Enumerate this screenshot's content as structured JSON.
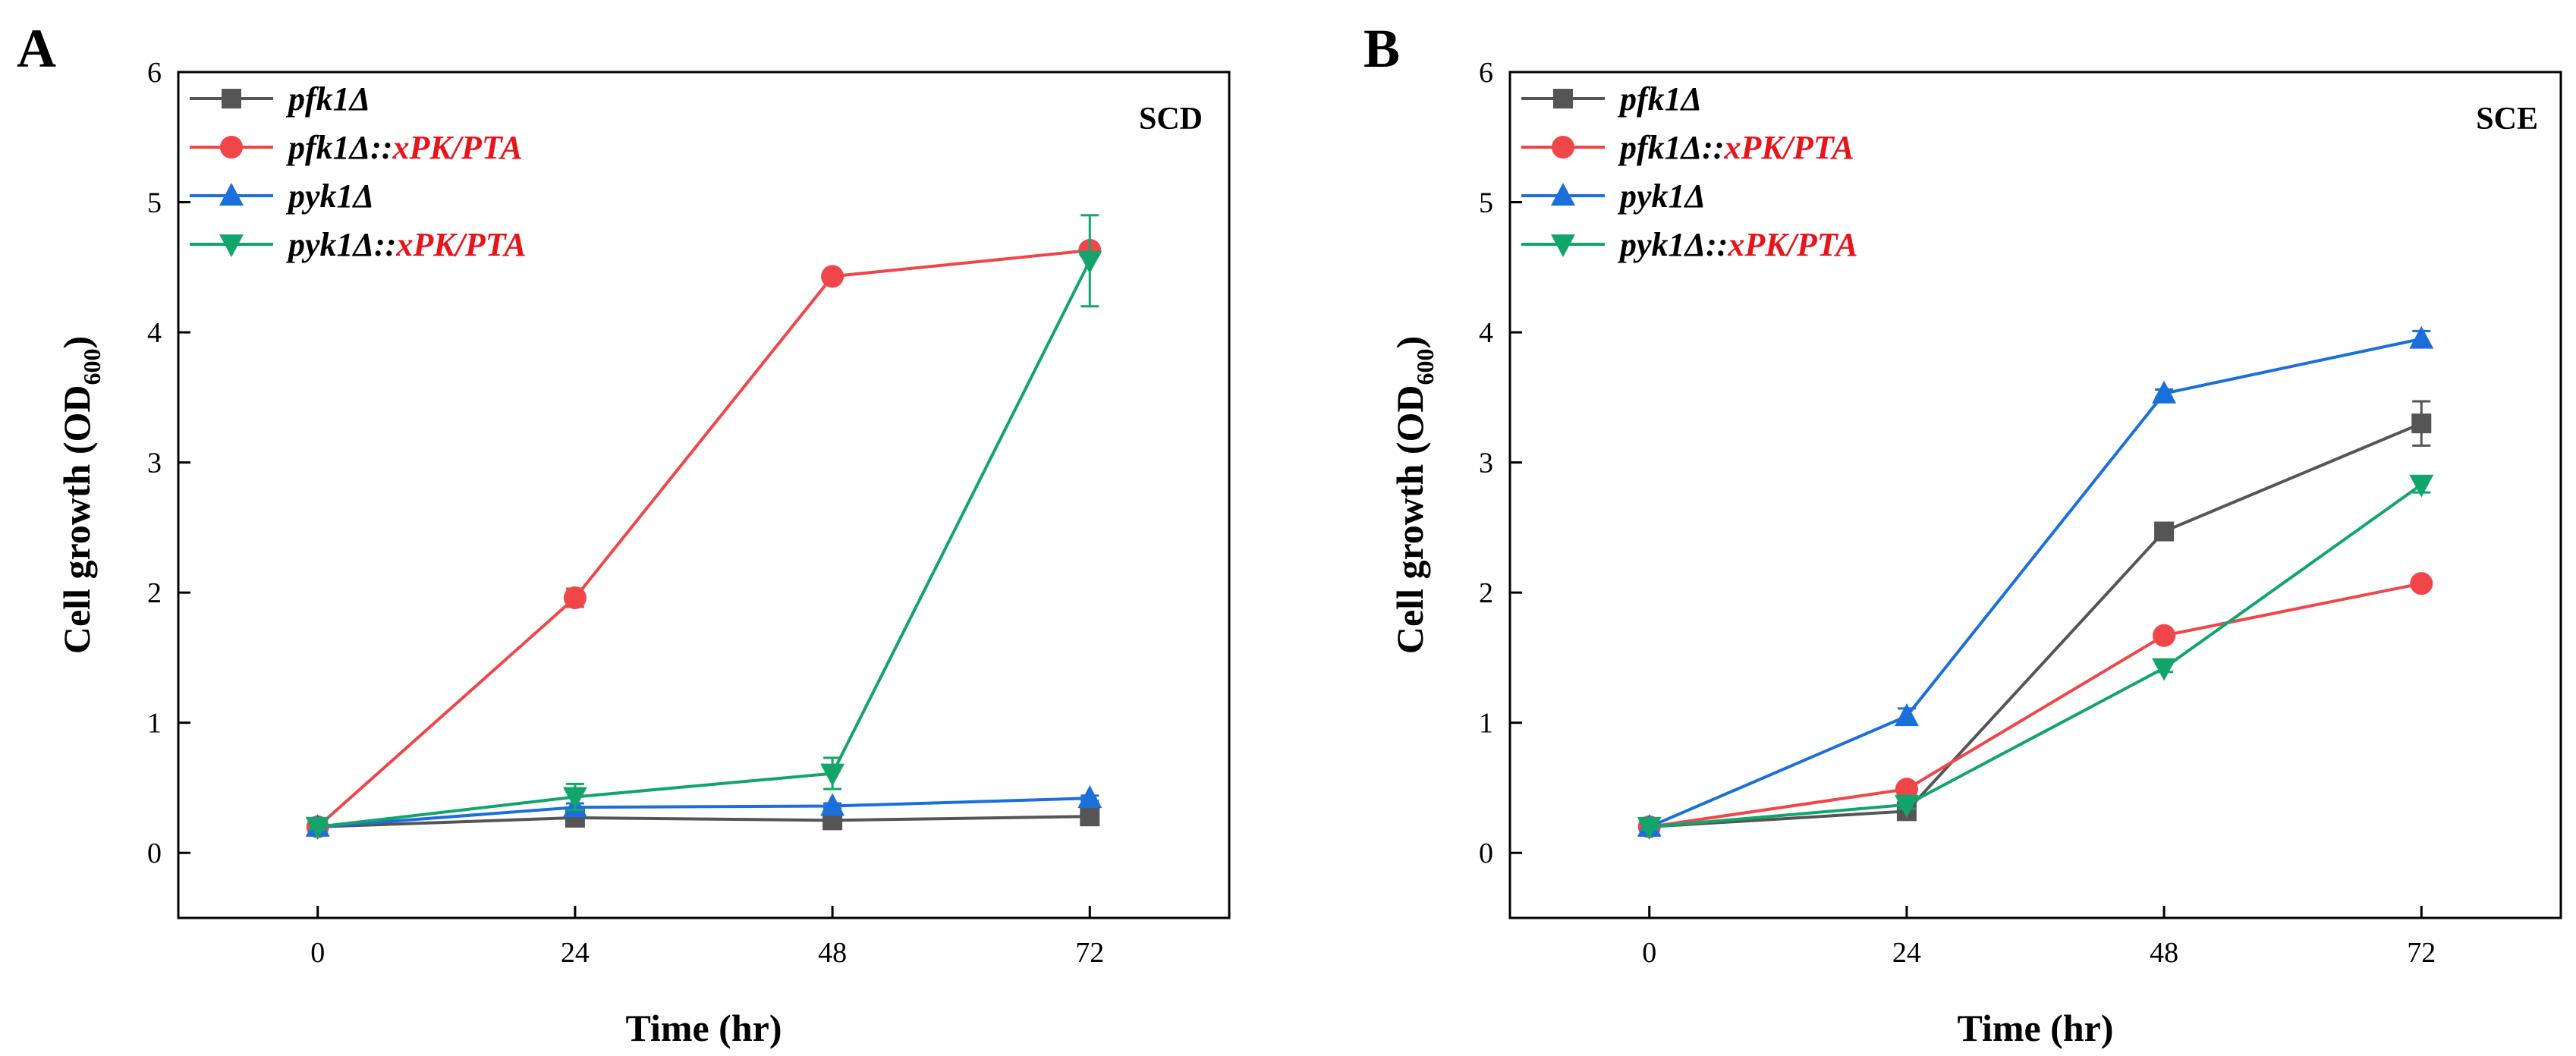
{
  "chart_data": [
    {
      "type": "line",
      "panel_label": "A",
      "medium": "SCD",
      "xlabel": "Time (hr)",
      "ylabel_main": "Cell growth (OD",
      "ylabel_sub": "600",
      "ylabel_close": ")",
      "xlim": [
        -13,
        85
      ],
      "ylim": [
        -0.5,
        6
      ],
      "xticks": [
        0,
        24,
        48,
        72
      ],
      "xtick_labels": [
        "0",
        "24",
        "48",
        "72"
      ],
      "yticks": [
        0,
        1,
        2,
        3,
        4,
        5,
        6
      ],
      "ytick_labels": [
        "0",
        "1",
        "2",
        "3",
        "4",
        "5",
        "6"
      ],
      "legend_position": "top-left",
      "x": [
        0,
        24,
        48,
        72
      ],
      "series": [
        {
          "name": "pfk1Δ",
          "legend_prefix": "pfk1Δ",
          "legend_suffix": "",
          "color": "#555555",
          "marker": "square",
          "values": [
            0.2,
            0.27,
            0.25,
            0.28
          ],
          "errors": [
            0.02,
            0.02,
            0.02,
            0.02
          ]
        },
        {
          "name": "pfk1Δ::xPK/PTA",
          "legend_prefix": "pfk1Δ::",
          "legend_suffix": "xPK/PTA",
          "color": "#f0464a",
          "marker": "circle",
          "values": [
            0.2,
            1.96,
            4.43,
            4.63
          ],
          "errors": [
            0.02,
            0.07,
            0.03,
            0.04
          ]
        },
        {
          "name": "pyk1Δ",
          "legend_prefix": "pyk1Δ",
          "legend_suffix": "",
          "color": "#1a6fdb",
          "marker": "triangle-up",
          "values": [
            0.2,
            0.35,
            0.36,
            0.42
          ],
          "errors": [
            0.02,
            0.03,
            0.02,
            0.02
          ]
        },
        {
          "name": "pyk1Δ::xPK/PTA",
          "legend_prefix": "pyk1Δ::",
          "legend_suffix": "xPK/PTA",
          "color": "#12a56b",
          "marker": "triangle-down",
          "values": [
            0.2,
            0.43,
            0.61,
            4.55
          ],
          "errors": [
            0.02,
            0.1,
            0.12,
            0.35
          ]
        }
      ]
    },
    {
      "type": "line",
      "panel_label": "B",
      "medium": "SCE",
      "xlabel": "Time (hr)",
      "ylabel_main": "Cell growth (OD",
      "ylabel_sub": "600",
      "ylabel_close": ")",
      "xlim": [
        -13,
        85
      ],
      "ylim": [
        -0.5,
        6
      ],
      "xticks": [
        0,
        24,
        48,
        72
      ],
      "xtick_labels": [
        "0",
        "24",
        "48",
        "72"
      ],
      "yticks": [
        0,
        1,
        2,
        3,
        4,
        5,
        6
      ],
      "ytick_labels": [
        "0",
        "1",
        "2",
        "3",
        "4",
        "5",
        "6"
      ],
      "legend_position": "top-left",
      "x": [
        0,
        24,
        48,
        72
      ],
      "series": [
        {
          "name": "pfk1Δ",
          "legend_prefix": "pfk1Δ",
          "legend_suffix": "",
          "color": "#555555",
          "marker": "square",
          "values": [
            0.2,
            0.32,
            2.47,
            3.3
          ],
          "errors": [
            0.02,
            0.03,
            0.03,
            0.17
          ]
        },
        {
          "name": "pfk1Δ::xPK/PTA",
          "legend_prefix": "pfk1Δ::",
          "legend_suffix": "xPK/PTA",
          "color": "#f0464a",
          "marker": "circle",
          "values": [
            0.2,
            0.49,
            1.67,
            2.07
          ],
          "errors": [
            0.02,
            0.03,
            0.03,
            0.02
          ]
        },
        {
          "name": "pyk1Δ",
          "legend_prefix": "pyk1Δ",
          "legend_suffix": "",
          "color": "#1a6fdb",
          "marker": "triangle-up",
          "values": [
            0.2,
            1.05,
            3.53,
            3.95
          ],
          "errors": [
            0.02,
            0.06,
            0.03,
            0.06
          ]
        },
        {
          "name": "pyk1Δ::xPK/PTA",
          "legend_prefix": "pyk1Δ::",
          "legend_suffix": "xPK/PTA",
          "color": "#12a56b",
          "marker": "triangle-down",
          "values": [
            0.2,
            0.37,
            1.42,
            2.83
          ],
          "errors": [
            0.02,
            0.03,
            0.03,
            0.06
          ]
        }
      ]
    }
  ]
}
